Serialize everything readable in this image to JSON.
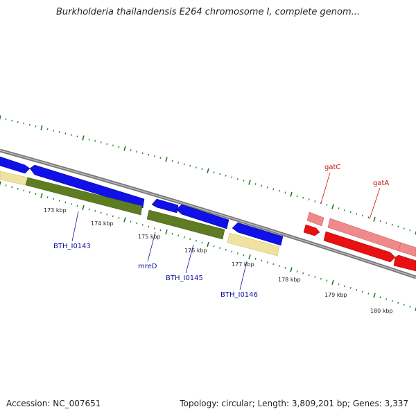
{
  "title": "Burkholderia thailandensis E264 chromosome I, complete genom...",
  "colors": {
    "backbone": "#808080",
    "tick": "#1e7a1e",
    "forward_cds": "#1010e8",
    "reverse_cds": "#5e7d22",
    "yellow_feature": "#f0e2a0",
    "gat_light": "#f08a8a",
    "gat_dark": "#e81010",
    "gene_label_blue": "#1010a0",
    "gene_label_red": "#cc1010"
  },
  "kbp_labels": [
    "173 kbp",
    "174 kbp",
    "175 kbp",
    "176 kbp",
    "177 kbp",
    "178 kbp",
    "179 kbp",
    "180 kbp"
  ],
  "genes": {
    "bth_i0143": "BTH_I0143",
    "mred": "mreD",
    "bth_i0145": "BTH_I0145",
    "bth_i0146": "BTH_I0146",
    "gatc": "gatC",
    "gata": "gatA"
  },
  "footer": {
    "accession": "Accession: NC_007651",
    "summary": "Topology: circular; Length: 3,809,201 bp; Genes: 3,337"
  }
}
